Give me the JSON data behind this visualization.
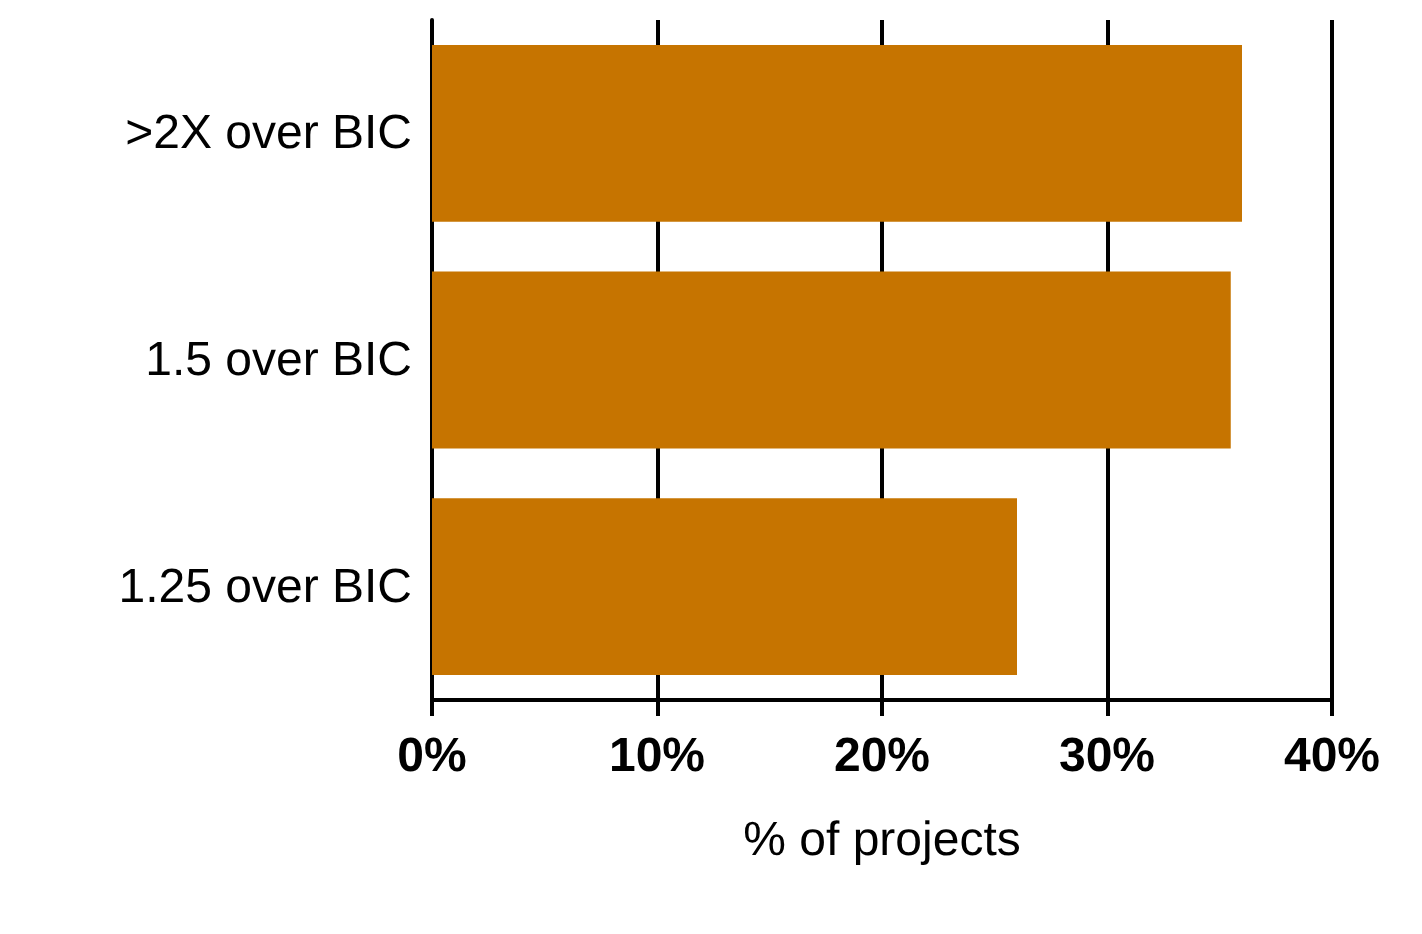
{
  "chart_data": {
    "type": "bar",
    "orientation": "horizontal",
    "xlabel": "% of projects",
    "categories": [
      ">2X over BIC",
      "1.5 over BIC",
      "1.25 over BIC"
    ],
    "values": [
      36,
      35.5,
      26
    ],
    "color": "#c67400",
    "xlim": [
      0,
      40
    ],
    "xticks": [
      {
        "value": 0,
        "label": "0%"
      },
      {
        "value": 10,
        "label": "10%"
      },
      {
        "value": 20,
        "label": "20%"
      },
      {
        "value": 30,
        "label": "30%"
      },
      {
        "value": 40,
        "label": "40%"
      }
    ],
    "grid": "x"
  }
}
